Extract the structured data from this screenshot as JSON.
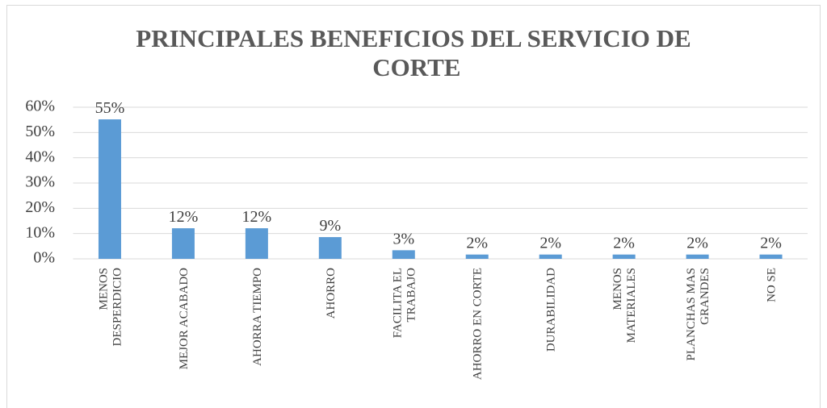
{
  "chart_data": {
    "type": "bar",
    "title": "PRINCIPALES BENEFICIOS DEL SERVICIO DE CORTE",
    "categories": [
      "MENOS DESPERDICIO",
      "MEJOR ACABADO",
      "AHORRA TIEMPO",
      "AHORRO",
      "FACILITA EL TRABAJO",
      "AHORRO EN CORTE",
      "DURABILIDAD",
      "MENOS MATERIALES",
      "PLANCHAS MAS GRANDES",
      "NO SE"
    ],
    "values": [
      55.2,
      12.1,
      12.1,
      8.6,
      3.4,
      1.7,
      1.7,
      1.7,
      1.7,
      1.7
    ],
    "value_labels": [
      "55%",
      "12%",
      "12%",
      "9%",
      "3%",
      "2%",
      "2%",
      "2%",
      "2%",
      "2%"
    ],
    "color": "#5b9bd5",
    "ylim": [
      0,
      60
    ],
    "yticks": [
      {
        "value": 0,
        "label": "0%"
      },
      {
        "value": 10,
        "label": "10%"
      },
      {
        "value": 20,
        "label": "20%"
      },
      {
        "value": 30,
        "label": "30%"
      },
      {
        "value": 40,
        "label": "40%"
      },
      {
        "value": 50,
        "label": "50%"
      },
      {
        "value": 60,
        "label": "60%"
      }
    ],
    "grid": true
  }
}
